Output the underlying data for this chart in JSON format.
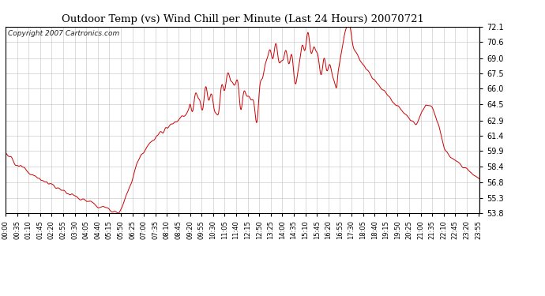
{
  "title": "Outdoor Temp (vs) Wind Chill per Minute (Last 24 Hours) 20070721",
  "copyright": "Copyright 2007 Cartronics.com",
  "line_color": "#cc0000",
  "bg_color": "#ffffff",
  "plot_bg_color": "#ffffff",
  "grid_color": "#bbbbbb",
  "ylim": [
    53.8,
    72.1
  ],
  "yticks": [
    53.8,
    55.3,
    56.8,
    58.4,
    59.9,
    61.4,
    62.9,
    64.5,
    66.0,
    67.5,
    69.0,
    70.6,
    72.1
  ],
  "xtick_labels": [
    "00:00",
    "00:35",
    "01:10",
    "01:45",
    "02:20",
    "02:55",
    "03:30",
    "04:05",
    "04:40",
    "05:15",
    "05:50",
    "06:25",
    "07:00",
    "07:35",
    "08:10",
    "08:45",
    "09:20",
    "09:55",
    "10:30",
    "11:05",
    "11:40",
    "12:15",
    "12:50",
    "13:25",
    "14:00",
    "14:35",
    "15:10",
    "15:45",
    "16:20",
    "16:55",
    "17:30",
    "18:05",
    "18:40",
    "19:15",
    "19:50",
    "20:25",
    "21:00",
    "21:35",
    "22:10",
    "22:45",
    "23:20",
    "23:55"
  ]
}
